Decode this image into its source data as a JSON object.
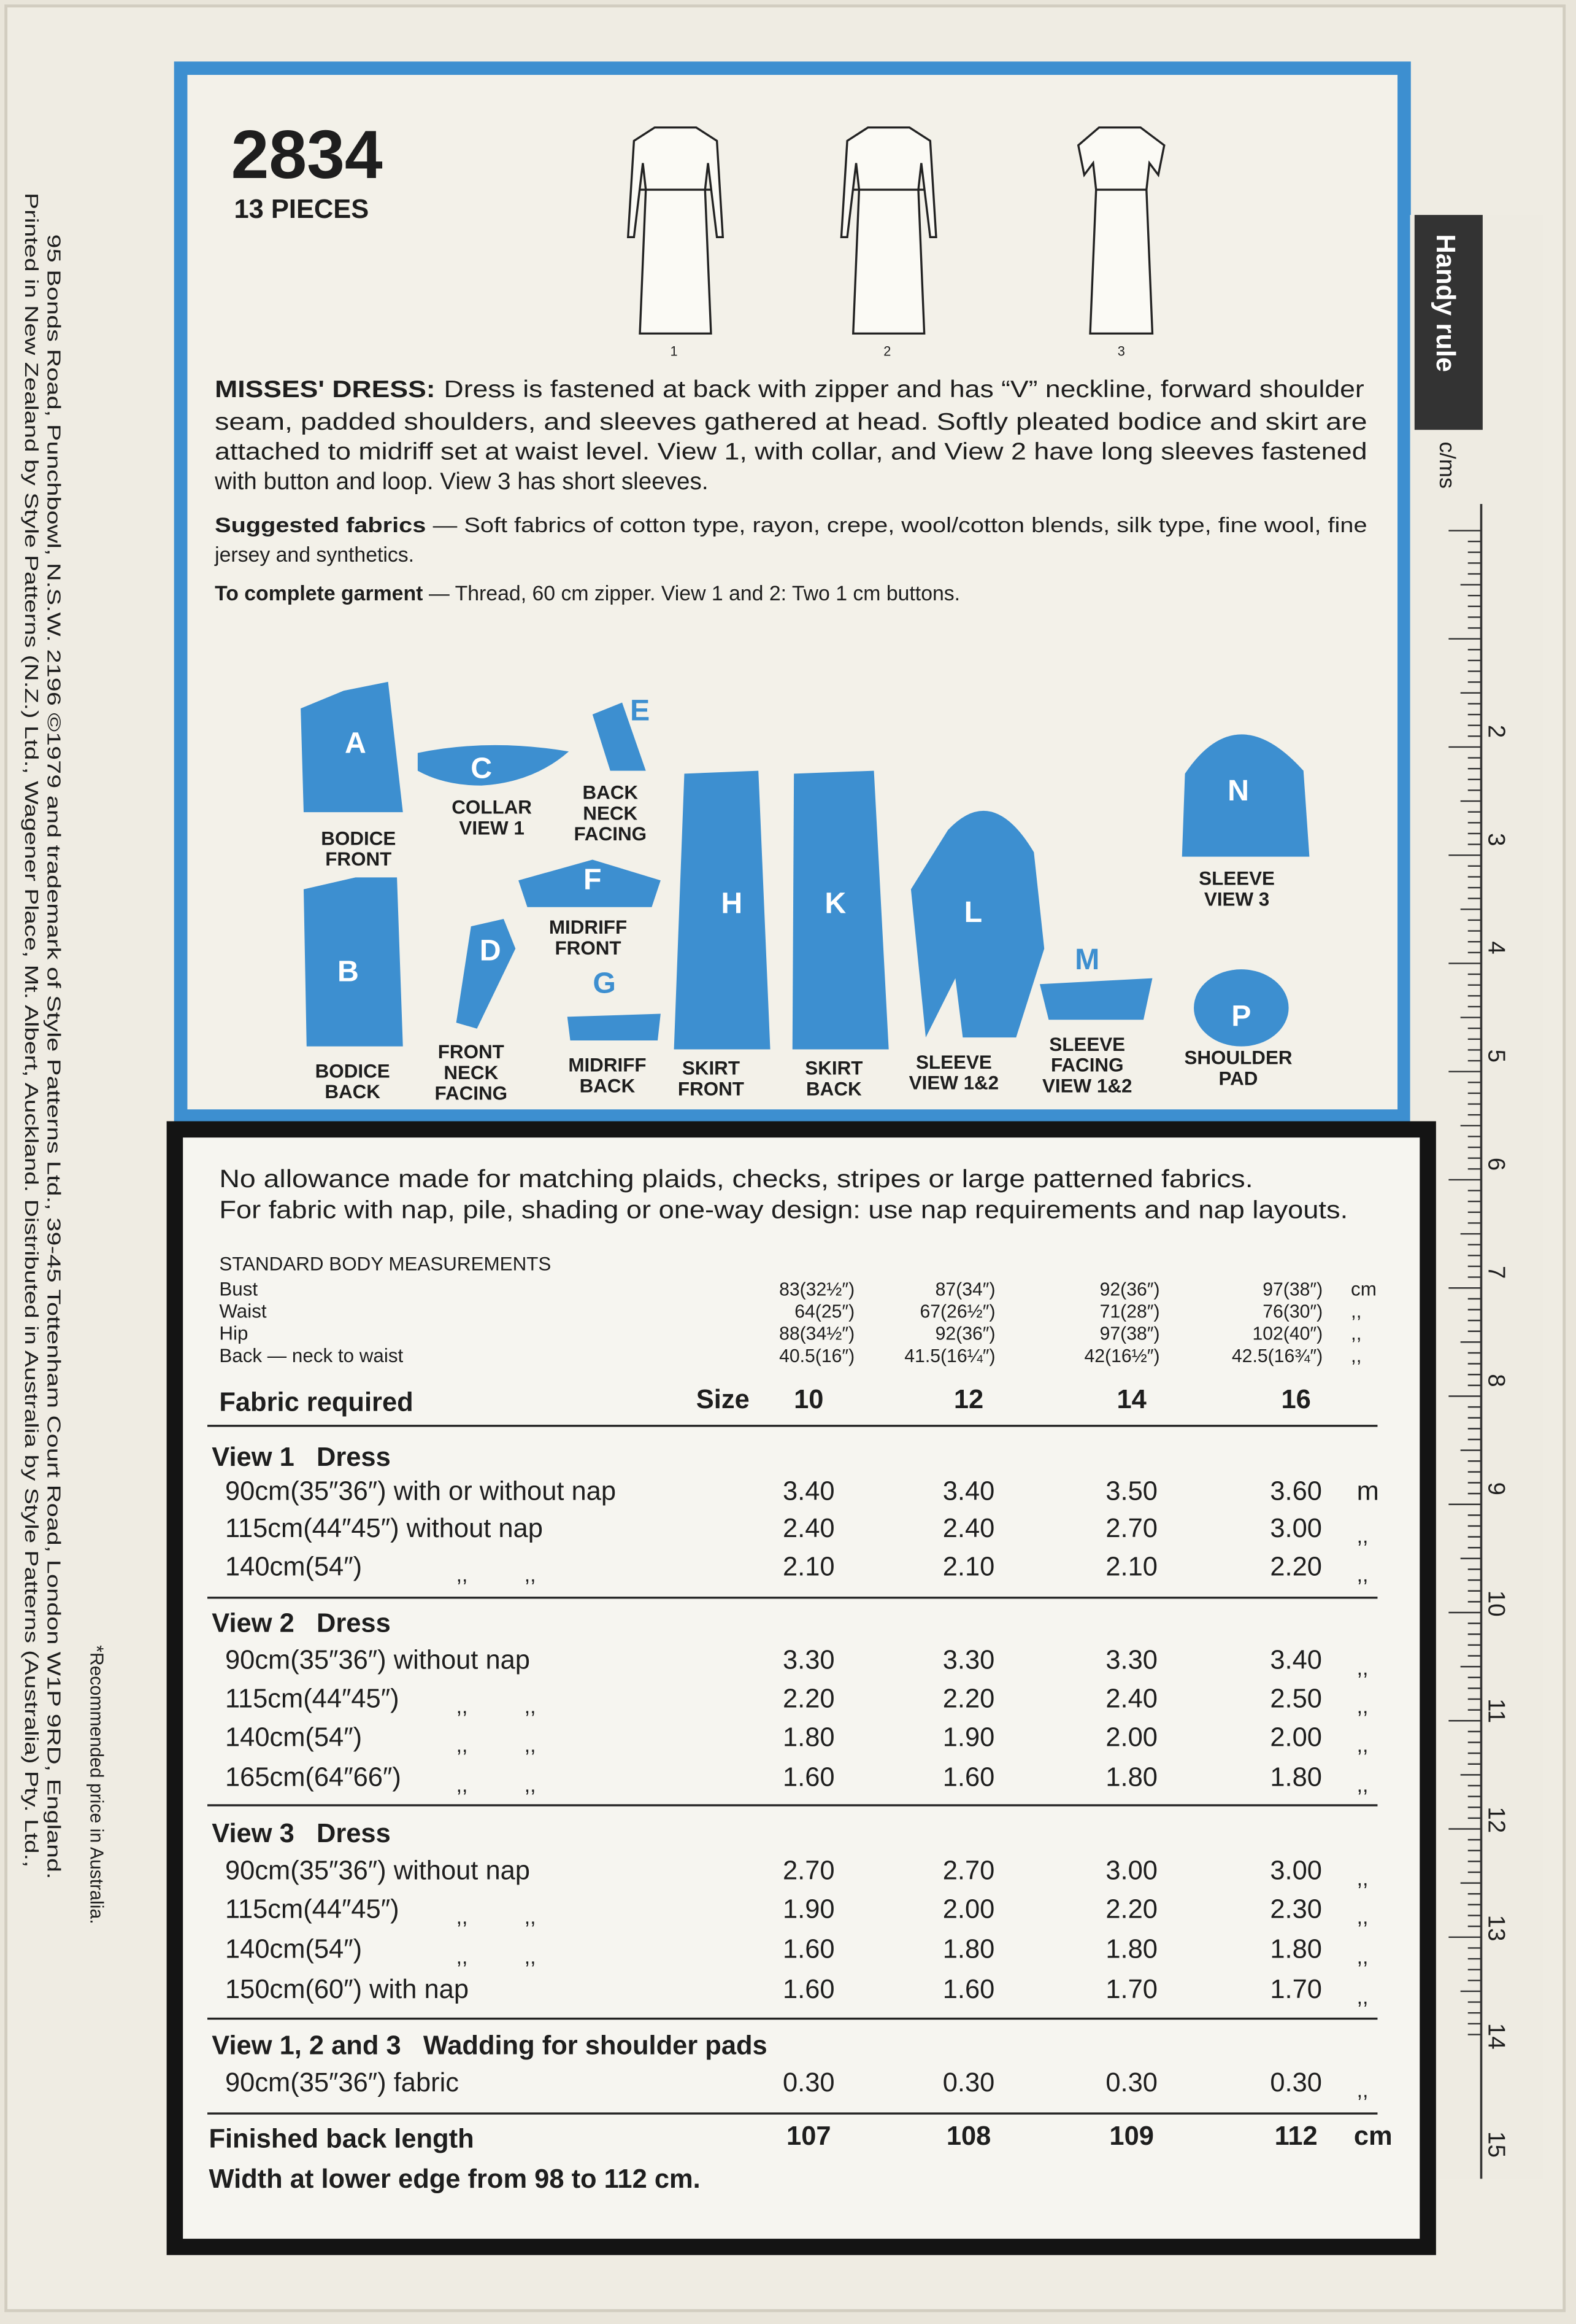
{
  "pattern_number": "2834",
  "pieces": "13 PIECES",
  "view_numbers": [
    "1",
    "2",
    "3"
  ],
  "description": {
    "heading": "MISSES' DRESS:",
    "lines": [
      "Dress is fastened at back with zipper and has “V” neckline, forward shoulder",
      "seam, padded shoulders, and sleeves gathered at head. Softly pleated bodice and skirt are",
      "attached to midriff set at waist level. View 1, with collar, and View 2 have long sleeves fastened",
      "with button and loop. View 3 has short sleeves."
    ]
  },
  "fabrics": {
    "heading": "Suggested fabrics",
    "lines": [
      "— Soft fabrics of cotton type, rayon, crepe, wool/cotton blends, silk type, fine wool, fine",
      "jersey and synthetics."
    ]
  },
  "notions": {
    "heading": "To complete garment",
    "text": "— Thread, 60 cm zipper. View 1 and 2: Two 1 cm buttons."
  },
  "pattern_pieces": [
    {
      "letter": "A",
      "label": [
        "BODICE",
        "FRONT"
      ]
    },
    {
      "letter": "B",
      "label": [
        "BODICE",
        "BACK"
      ]
    },
    {
      "letter": "C",
      "label": [
        "COLLAR",
        "VIEW 1"
      ]
    },
    {
      "letter": "D",
      "label": [
        "FRONT",
        "NECK",
        "FACING"
      ]
    },
    {
      "letter": "E",
      "label": [
        "BACK",
        "NECK",
        "FACING"
      ]
    },
    {
      "letter": "F",
      "label": [
        "MIDRIFF",
        "FRONT"
      ]
    },
    {
      "letter": "G",
      "label": [
        "MIDRIFF",
        "BACK"
      ]
    },
    {
      "letter": "H",
      "label": [
        "SKIRT",
        "FRONT"
      ]
    },
    {
      "letter": "K",
      "label": [
        "SKIRT",
        "BACK"
      ]
    },
    {
      "letter": "L",
      "label": [
        "SLEEVE",
        "VIEW 1&2"
      ]
    },
    {
      "letter": "M",
      "label": [
        "SLEEVE",
        "FACING",
        "VIEW 1&2"
      ]
    },
    {
      "letter": "N",
      "label": [
        "SLEEVE",
        "VIEW 3"
      ]
    },
    {
      "letter": "P",
      "label": [
        "SHOULDER",
        "PAD"
      ]
    }
  ],
  "side_text": [
    "Printed in New Zealand by Style Patterns (N.Z.) Ltd., Wagener Place, Mt. Albert, Auckland. Distributed in Australia by Style Patterns (Australia) Pty. Ltd.,",
    "95 Bonds Road, Punchbowl, N.S.W. 2196  ©1979 and trademark of Style Patterns Ltd., 39-45 Tottenham Court Road, London W1P 9RD, England.",
    "*Recommended price in Australia."
  ],
  "handy_rule": {
    "title": "Handy rule",
    "unit": "c/ms",
    "marks": [
      "2",
      "3",
      "4",
      "5",
      "6",
      "7",
      "8",
      "9",
      "10",
      "11",
      "12",
      "13",
      "14",
      "15"
    ]
  },
  "notes": [
    "No allowance made for matching plaids, checks, stripes or large patterned fabrics.",
    "For fabric with nap, pile, shading or one-way design: use nap requirements and nap layouts."
  ],
  "body_measurements": {
    "title": "STANDARD BODY MEASUREMENTS",
    "rows": [
      {
        "label": "Bust",
        "values": [
          "83(32½″)",
          "87(34″)",
          "92(36″)",
          "97(38″)"
        ],
        "unit": "cm"
      },
      {
        "label": "Waist",
        "values": [
          "64(25″)",
          "67(26½″)",
          "71(28″)",
          "76(30″)"
        ],
        "unit": ",,"
      },
      {
        "label": "Hip",
        "values": [
          "88(34½″)",
          "92(36″)",
          "97(38″)",
          "102(40″)"
        ],
        "unit": ",,"
      },
      {
        "label": "Back — neck to waist",
        "values": [
          "40.5(16″)",
          "41.5(16¼″)",
          "42(16½″)",
          "42.5(16¾″)"
        ],
        "unit": ",,"
      }
    ]
  },
  "table": {
    "heading": "Fabric required",
    "size_label": "Size",
    "sizes": [
      "10",
      "12",
      "14",
      "16"
    ],
    "sections": [
      {
        "title": "View 1   Dress",
        "rows": [
          {
            "fabric": "90cm(35″36″) with or without nap",
            "ditto": [],
            "values": [
              "3.40",
              "3.40",
              "3.50",
              "3.60"
            ],
            "unit": "m"
          },
          {
            "fabric": "115cm(44″45″) without nap",
            "ditto": [],
            "values": [
              "2.40",
              "2.40",
              "2.70",
              "3.00"
            ],
            "unit": ",,"
          },
          {
            "fabric": "140cm(54″)",
            "ditto": [
              ",,",
              ",,"
            ],
            "values": [
              "2.10",
              "2.10",
              "2.10",
              "2.20"
            ],
            "unit": ",,"
          }
        ]
      },
      {
        "title": "View 2   Dress",
        "rows": [
          {
            "fabric": "90cm(35″36″) without nap",
            "ditto": [],
            "values": [
              "3.30",
              "3.30",
              "3.30",
              "3.40"
            ],
            "unit": ",,"
          },
          {
            "fabric": "115cm(44″45″)",
            "ditto": [
              ",,",
              ",,"
            ],
            "values": [
              "2.20",
              "2.20",
              "2.40",
              "2.50"
            ],
            "unit": ",,"
          },
          {
            "fabric": "140cm(54″)",
            "ditto": [
              ",,",
              ",,"
            ],
            "values": [
              "1.80",
              "1.90",
              "2.00",
              "2.00"
            ],
            "unit": ",,"
          },
          {
            "fabric": "165cm(64″66″)",
            "ditto": [
              ",,",
              ",,"
            ],
            "values": [
              "1.60",
              "1.60",
              "1.80",
              "1.80"
            ],
            "unit": ",,"
          }
        ]
      },
      {
        "title": "View 3   Dress",
        "rows": [
          {
            "fabric": "90cm(35″36″) without nap",
            "ditto": [],
            "values": [
              "2.70",
              "2.70",
              "3.00",
              "3.00"
            ],
            "unit": ",,"
          },
          {
            "fabric": "115cm(44″45″)",
            "ditto": [
              ",,",
              ",,"
            ],
            "values": [
              "1.90",
              "2.00",
              "2.20",
              "2.30"
            ],
            "unit": ",,"
          },
          {
            "fabric": "140cm(54″)",
            "ditto": [
              ",,",
              ",,"
            ],
            "values": [
              "1.60",
              "1.80",
              "1.80",
              "1.80"
            ],
            "unit": ",,"
          },
          {
            "fabric": "150cm(60″) with nap",
            "ditto": [],
            "values": [
              "1.60",
              "1.60",
              "1.70",
              "1.70"
            ],
            "unit": ",,"
          }
        ]
      },
      {
        "title": "View 1, 2 and 3   Wadding for shoulder pads",
        "rows": [
          {
            "fabric": "90cm(35″36″) fabric",
            "ditto": [],
            "values": [
              "0.30",
              "0.30",
              "0.30",
              "0.30"
            ],
            "unit": ",,"
          }
        ]
      }
    ],
    "finished": {
      "label": "Finished back length",
      "values": [
        "107",
        "108",
        "109",
        "112"
      ],
      "unit": "cm"
    },
    "width_note": "Width at lower edge from 98 to 112 cm."
  }
}
